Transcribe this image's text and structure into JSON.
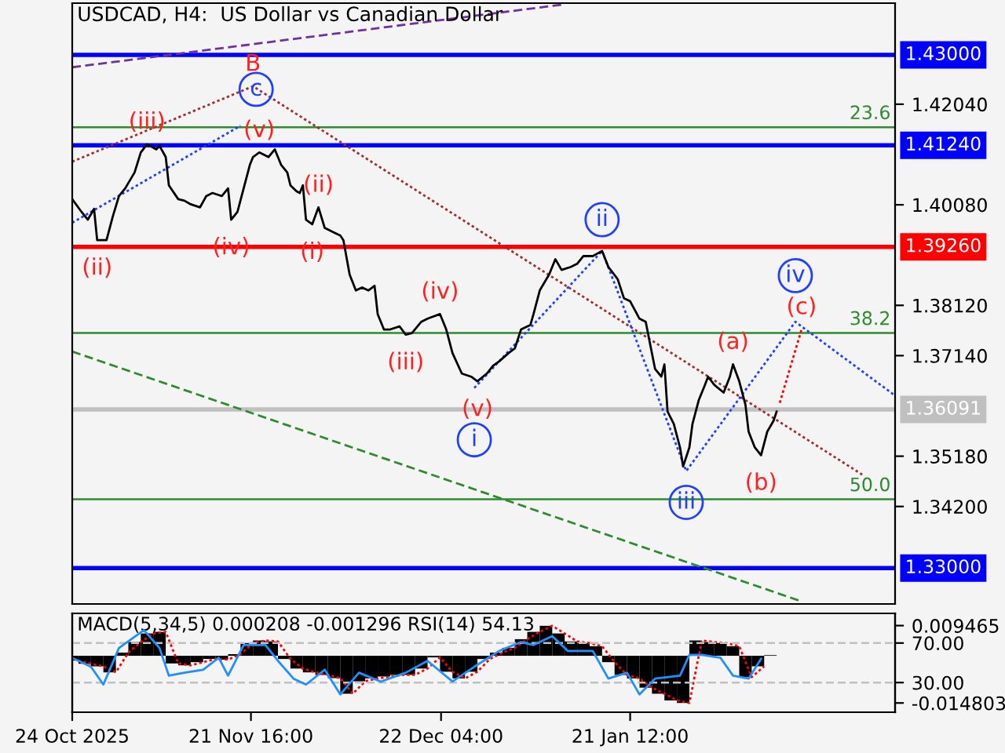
{
  "chart_data": [
    {
      "type": "line",
      "title": "USDCAD, H4:  US Dollar vs Canadian Dollar",
      "xlim": [
        "2025-10-24",
        "2026-03-05"
      ],
      "ylim": [
        1.323,
        1.4401
      ],
      "yticks": [
        {
          "value": 1.4204,
          "label": "1.42040"
        },
        {
          "value": 1.4008,
          "label": "1.40080"
        },
        {
          "value": 1.3812,
          "label": "1.38120"
        },
        {
          "value": 1.3714,
          "label": "1.37140"
        },
        {
          "value": 1.3518,
          "label": "1.35180"
        },
        {
          "value": 1.342,
          "label": "1.34200"
        }
      ],
      "tick_labels": "y",
      "ref_lines": [
        {
          "axis": "y",
          "value": 1.43,
          "label": "1.43000",
          "color": "#0000ff",
          "line_style": "solid"
        },
        {
          "axis": "y",
          "value": 1.4124,
          "label": "1.41240",
          "color": "#0000ff",
          "line_style": "solid"
        },
        {
          "axis": "y",
          "value": 1.3926,
          "label": "1.39260",
          "color": "#ff0000",
          "line_style": "solid"
        },
        {
          "axis": "y",
          "value": 1.36091,
          "label": "1.36091",
          "color": "#c0c0c0",
          "line_style": "solid"
        },
        {
          "axis": "y",
          "value": 1.33,
          "label": "1.33000",
          "color": "#0000ff",
          "line_style": "solid"
        },
        {
          "axis": "y",
          "value": 1.4159,
          "color": "#2e8b2e",
          "line_style": "solid"
        },
        {
          "axis": "y",
          "value": 1.3758,
          "color": "#2e8b2e",
          "line_style": "solid"
        },
        {
          "axis": "y",
          "value": 1.3434,
          "color": "#2e8b2e",
          "line_style": "solid"
        }
      ],
      "annotations": [
        {
          "text": "23.6",
          "x": "2026-03-05",
          "y": 1.4159
        },
        {
          "text": "38.2",
          "x": "2026-03-05",
          "y": 1.3758
        },
        {
          "text": "50.0",
          "x": "2026-03-05",
          "y": 1.3434
        },
        {
          "text": "(iii)",
          "x": "2025-11-05",
          "y": 1.4126
        },
        {
          "text": "(v)",
          "x": "2025-11-23",
          "y": 1.411
        },
        {
          "text": "(ii)",
          "x": "2025-10-28",
          "y": 1.3939
        },
        {
          "text": "(iv)",
          "x": "2025-11-18T12:00",
          "y": 1.3979
        },
        {
          "text": "(ii)",
          "x": "2025-12-02T12:00",
          "y": 1.4003
        },
        {
          "text": "(i)",
          "x": "2025-12-01T12:00",
          "y": 1.397
        },
        {
          "text": "(iv)",
          "x": "2025-12-22",
          "y": 1.3795
        },
        {
          "text": "(iii)",
          "x": "2025-12-16T12:00",
          "y": 1.3755
        },
        {
          "text": "(v)",
          "x": "2025-12-28",
          "y": 1.3664
        },
        {
          "text": "(a)",
          "x": "2026-02-07",
          "y": 1.3697
        },
        {
          "text": "(b)",
          "x": "2026-02-11T12:00",
          "y": 1.352
        },
        {
          "text": "(c)",
          "x": "2026-02-18",
          "y": 1.3765
        },
        {
          "text": "B",
          "x": "2025-11-22",
          "y": 1.4239
        }
      ],
      "series": [
        {
          "type": "line",
          "color": "#7030a0",
          "line_style": "dashed",
          "x": [
            "2025-10-24",
            "2026-01-10T12:00"
          ],
          "values": [
            1.4276,
            1.4398
          ]
        },
        {
          "type": "line",
          "color": "#2e8b2e",
          "line_style": "dashed",
          "x": [
            "2025-10-24",
            "2026-02-18"
          ],
          "values": [
            1.3722,
            1.3235
          ]
        },
        {
          "type": "line",
          "color": "#a03030",
          "line_style": "dotted",
          "x": [
            "2025-10-24",
            "2025-11-22",
            "2026-02-28"
          ],
          "values": [
            1.4092,
            1.4239,
            1.348
          ]
        },
        {
          "type": "line",
          "color": "#2040ff",
          "line_style": "dotted",
          "x": [
            "2025-10-24",
            "2025-11-20"
          ],
          "values": [
            1.3973,
            1.4162
          ]
        },
        {
          "type": "line",
          "color": "#2040ff",
          "line_style": "dotted",
          "x": [
            "2025-12-27T12:00",
            "2026-01-17",
            "2026-01-30T12:00",
            "2026-02-17",
            "2026-03-05"
          ],
          "values": [
            1.3651,
            1.3918,
            1.3489,
            1.378,
            1.3636
          ]
        },
        {
          "type": "line",
          "color": "#ff0000",
          "line_style": "dotted",
          "x": [
            "2026-02-14T12:00",
            "2026-02-18"
          ],
          "values": [
            1.3622,
            1.3765
          ]
        },
        {
          "color": "#000000",
          "x": [
            "2025-10-24",
            "2025-10-25T12:00",
            "2025-10-26T12:00",
            "2025-10-27T12:00",
            "2025-10-28",
            "2025-10-29T12:00",
            "2025-10-30T12:00",
            "2025-10-31T12:00",
            "2025-11-01T12:00",
            "2025-11-03",
            "2025-11-04",
            "2025-11-05",
            "2025-11-06T12:00",
            "2025-11-07",
            "2025-11-08",
            "2025-11-08T12:00",
            "2025-11-10",
            "2025-11-11",
            "2025-11-12",
            "2025-11-13T12:00",
            "2025-11-14T12:00",
            "2025-11-15T12:00",
            "2025-11-17",
            "2025-11-18",
            "2025-11-18T12:00",
            "2025-11-19T12:00",
            "2025-11-20T12:00",
            "2025-11-21T12:00",
            "2025-11-22",
            "2025-11-23",
            "2025-11-24T12:00",
            "2025-11-25T12:00",
            "2025-11-26T12:00",
            "2025-11-27T12:00",
            "2025-11-28",
            "2025-11-29",
            "2025-11-29T12:00",
            "2025-11-30",
            "2025-11-30T12:00",
            "2025-12-01T12:00",
            "2025-12-02T12:00",
            "2025-12-03T12:00",
            "2025-12-05",
            "2025-12-06",
            "2025-12-06T12:00",
            "2025-12-07T12:00",
            "2025-12-08T12:00",
            "2025-12-09T12:00",
            "2025-12-10T12:00",
            "2025-12-11T12:00",
            "2025-12-12",
            "2025-12-13",
            "2025-12-14",
            "2025-12-15T12:00",
            "2025-12-16T12:00",
            "2025-12-17T12:00",
            "2025-12-19",
            "2025-12-20",
            "2025-12-22",
            "2025-12-23",
            "2025-12-24",
            "2025-12-25T12:00",
            "2025-12-27",
            "2025-12-28",
            "2025-12-29T12:00",
            "2025-12-30T12:00",
            "2025-12-31T12:00",
            "2026-01-02",
            "2026-01-03",
            "2026-01-04",
            "2026-01-05T12:00",
            "2026-01-06",
            "2026-01-07",
            "2026-01-08T12:00",
            "2026-01-09T12:00",
            "2026-01-10T12:00",
            "2026-01-12",
            "2026-01-13",
            "2026-01-14",
            "2026-01-15T12:00",
            "2026-01-17",
            "2026-01-18",
            "2026-01-19T12:00",
            "2026-01-20T12:00",
            "2026-01-21T12:00",
            "2026-01-23",
            "2026-01-24",
            "2026-01-24T12:00",
            "2026-01-25T12:00",
            "2026-01-26T12:00",
            "2026-01-27",
            "2026-01-27T12:00",
            "2026-01-28T12:00",
            "2026-01-29T12:00",
            "2026-01-30",
            "2026-01-31",
            "2026-01-31T12:00",
            "2026-02-01T12:00",
            "2026-02-02T12:00",
            "2026-02-03",
            "2026-02-04",
            "2026-02-05T12:00",
            "2026-02-06T12:00",
            "2026-02-07",
            "2026-02-08",
            "2026-02-09",
            "2026-02-09T12:00",
            "2026-02-10T12:00",
            "2026-02-11T12:00",
            "2026-02-12T12:00",
            "2026-02-13T12:00",
            "2026-02-14"
          ],
          "values": [
            1.4019,
            1.3994,
            1.3979,
            1.4,
            1.3939,
            1.3939,
            1.3985,
            1.4025,
            1.404,
            1.4071,
            1.411,
            1.4126,
            1.4116,
            1.4123,
            1.4101,
            1.4046,
            1.4019,
            1.4016,
            1.4009,
            1.4003,
            1.4025,
            1.4031,
            1.4025,
            1.404,
            1.3979,
            1.3994,
            1.404,
            1.4086,
            1.4101,
            1.411,
            1.4101,
            1.4116,
            1.4086,
            1.4071,
            1.4046,
            1.4034,
            1.4031,
            1.4046,
            1.3979,
            1.397,
            1.4003,
            1.3963,
            1.3954,
            1.3948,
            1.3939,
            1.3872,
            1.3841,
            1.3847,
            1.3841,
            1.385,
            1.3795,
            1.3765,
            1.3765,
            1.3771,
            1.3755,
            1.3758,
            1.378,
            1.3786,
            1.3795,
            1.3765,
            1.3719,
            1.3679,
            1.3673,
            1.3664,
            1.3679,
            1.3694,
            1.3703,
            1.3719,
            1.3728,
            1.3765,
            1.3774,
            1.3795,
            1.3841,
            1.3872,
            1.3902,
            1.3881,
            1.3887,
            1.3893,
            1.3908,
            1.3908,
            1.3918,
            1.3887,
            1.3863,
            1.3826,
            1.382,
            1.3786,
            1.378,
            1.3749,
            1.3688,
            1.3673,
            1.3697,
            1.3605,
            1.3581,
            1.3535,
            1.3498,
            1.3535,
            1.3581,
            1.3627,
            1.3657,
            1.3673,
            1.3657,
            1.3642,
            1.3673,
            1.3697,
            1.3664,
            1.3618,
            1.3566,
            1.3535,
            1.352,
            1.3566,
            1.3587,
            1.3605
          ]
        },
        {
          "type": "scatter",
          "marker": "circle",
          "color": "#2040ff",
          "x": [
            "2025-11-22T12:00",
            "2026-01-17",
            "2025-12-27T12:00",
            "2026-01-30T12:00",
            "2026-02-17"
          ],
          "values": [
            1.4233,
            1.3979,
            1.355,
            1.3428,
            1.387
          ],
          "value_labels": [
            "c",
            "ii",
            "i",
            "iii",
            "iv"
          ]
        }
      ]
    },
    {
      "type": "bar",
      "title": "MACD(5,34,5) 0.000208 -0.001296 RSI(14) 54.13",
      "xlim": [
        "2025-10-24",
        "2026-03-05"
      ],
      "xticks": [
        {
          "value": "2025-10-24",
          "label": "24 Oct 2025"
        },
        {
          "value": "2025-11-21T16:00",
          "label": "21 Nov 16:00"
        },
        {
          "value": "2025-12-22T04:00",
          "label": "22 Dec 04:00"
        },
        {
          "value": "2026-01-21T12:00",
          "label": "21 Jan 12:00"
        }
      ],
      "ylim": [
        -0.0177,
        0.0133
      ],
      "yticks": [
        0.009465,
        {
          "value": -0.014803,
          "label": "-0.014803"
        }
      ],
      "y2lim": [
        0,
        100
      ],
      "y2ticks": [
        {
          "value": 70,
          "label": "70.00"
        },
        {
          "value": 30,
          "label": "30.00"
        }
      ],
      "ref_lines": [
        {
          "axis": "y2",
          "value": 70,
          "color": "#c0c0c0",
          "line_style": "dashed"
        },
        {
          "axis": "y2",
          "value": 30,
          "color": "#c0c0c0",
          "line_style": "dashed"
        }
      ],
      "series": [
        {
          "color": "#000000",
          "x": [
            "2025-10-24",
            "2025-10-26",
            "2025-10-28",
            "2025-10-30",
            "2025-11-01",
            "2025-11-03",
            "2025-11-05",
            "2025-11-07",
            "2025-11-09",
            "2025-11-11",
            "2025-11-13",
            "2025-11-15",
            "2025-11-17",
            "2025-11-19",
            "2025-11-21",
            "2025-11-23",
            "2025-11-25",
            "2025-11-27",
            "2025-11-29",
            "2025-12-01",
            "2025-12-03",
            "2025-12-05",
            "2025-12-07",
            "2025-12-09",
            "2025-12-11",
            "2025-12-13",
            "2025-12-15",
            "2025-12-17",
            "2025-12-19",
            "2025-12-21",
            "2025-12-23",
            "2025-12-25",
            "2025-12-27",
            "2025-12-29",
            "2025-12-31",
            "2026-01-02",
            "2026-01-04",
            "2026-01-06",
            "2026-01-08",
            "2026-01-10",
            "2026-01-12",
            "2026-01-14",
            "2026-01-16",
            "2026-01-18",
            "2026-01-20",
            "2026-01-22",
            "2026-01-24",
            "2026-01-26",
            "2026-01-28",
            "2026-01-30",
            "2026-02-01",
            "2026-02-03",
            "2026-02-05",
            "2026-02-07",
            "2026-02-09",
            "2026-02-11",
            "2026-02-13"
          ],
          "values": [
            -0.0015,
            -0.0025,
            -0.0033,
            -0.0052,
            0.001,
            0.0043,
            0.007,
            0.0075,
            -0.0024,
            -0.003,
            -0.002,
            -0.001,
            -0.0012,
            0.0005,
            0.004,
            0.0048,
            0.0045,
            -0.001,
            -0.004,
            -0.0052,
            -0.006,
            -0.007,
            -0.0119,
            -0.008,
            -0.0071,
            -0.0065,
            -0.006,
            -0.006,
            -0.004,
            -0.0005,
            -0.005,
            -0.0071,
            -0.005,
            -0.001,
            0.001,
            0.0025,
            0.0052,
            0.0075,
            0.0094,
            0.007,
            0.0045,
            0.004,
            0.003,
            -0.002,
            -0.006,
            -0.0071,
            -0.01,
            -0.0119,
            -0.014,
            -0.0148,
            0.0048,
            0.0043,
            0.004,
            0.003,
            -0.0067,
            -0.0033,
            0.0002
          ]
        },
        {
          "type": "line",
          "color": "#ff0000",
          "line_style": "dotted",
          "x": [
            "2025-10-25",
            "2025-10-27",
            "2025-10-29",
            "2025-10-31",
            "2025-11-02",
            "2025-11-04",
            "2025-11-06",
            "2025-11-08",
            "2025-11-10",
            "2025-11-12",
            "2025-11-14",
            "2025-11-16",
            "2025-11-18",
            "2025-11-20",
            "2025-11-22",
            "2025-11-24",
            "2025-11-26",
            "2025-11-28",
            "2025-11-30",
            "2025-12-02",
            "2025-12-04",
            "2025-12-06",
            "2025-12-08",
            "2025-12-10",
            "2025-12-12",
            "2025-12-14",
            "2025-12-16",
            "2025-12-18",
            "2025-12-20",
            "2025-12-22",
            "2025-12-24",
            "2025-12-26",
            "2025-12-28",
            "2025-12-30",
            "2026-01-01",
            "2026-01-03",
            "2026-01-05",
            "2026-01-07",
            "2026-01-09",
            "2026-01-11",
            "2026-01-13",
            "2026-01-15",
            "2026-01-17",
            "2026-01-19",
            "2026-01-21",
            "2026-01-23",
            "2026-01-25",
            "2026-01-27",
            "2026-01-29",
            "2026-01-31",
            "2026-02-02",
            "2026-02-04",
            "2026-02-06",
            "2026-02-08",
            "2026-02-10",
            "2026-02-12"
          ],
          "values": [
            -0.0015,
            -0.0025,
            -0.0033,
            -0.0052,
            0.001,
            0.0043,
            0.007,
            0.0075,
            -0.0024,
            -0.003,
            -0.002,
            -0.001,
            -0.0012,
            0.0005,
            0.004,
            0.0048,
            0.0045,
            -0.001,
            -0.004,
            -0.0052,
            -0.006,
            -0.007,
            -0.0119,
            -0.008,
            -0.0071,
            -0.0065,
            -0.006,
            -0.006,
            -0.004,
            -0.0005,
            -0.005,
            -0.0071,
            -0.005,
            -0.001,
            0.001,
            0.0025,
            0.0052,
            0.0075,
            0.0094,
            0.007,
            0.0045,
            0.004,
            0.003,
            -0.002,
            -0.006,
            -0.0071,
            -0.01,
            -0.0119,
            -0.014,
            -0.0148,
            0.0048,
            0.0043,
            0.004,
            0.003,
            -0.0067,
            -0.0033
          ]
        },
        {
          "type": "line",
          "color": "#1e90ff",
          "axis": "y2",
          "x": [
            "2025-10-24",
            "2025-10-27",
            "2025-10-29",
            "2025-10-31T12:00",
            "2025-11-04T12:00",
            "2025-11-07",
            "2025-11-08T12:00",
            "2025-11-11",
            "2025-11-14",
            "2025-11-16T12:00",
            "2025-11-18",
            "2025-11-20T12:00",
            "2025-11-24",
            "2025-11-26",
            "2025-11-28T12:00",
            "2025-11-30T12:00",
            "2025-12-03T12:00",
            "2025-12-06",
            "2025-12-09",
            "2025-12-12T12:00",
            "2025-12-16T12:00",
            "2025-12-20",
            "2025-12-24",
            "2025-12-27T12:00",
            "2025-12-31T12:00",
            "2026-01-04",
            "2026-01-06",
            "2026-01-09",
            "2026-01-11T12:00",
            "2026-01-15T12:00",
            "2026-01-18",
            "2026-01-21",
            "2026-01-23",
            "2026-01-25T12:00",
            "2026-01-29T12:00",
            "2026-01-31",
            "2026-02-02",
            "2026-02-05",
            "2026-02-07",
            "2026-02-09T12:00",
            "2026-02-11T12:00"
          ],
          "values": [
            55,
            46,
            28,
            65,
            83,
            65,
            37,
            40,
            43,
            55,
            37,
            68,
            68,
            52,
            34,
            28,
            43,
            18,
            40,
            31,
            40,
            52,
            31,
            46,
            62,
            71,
            68,
            77,
            62,
            62,
            34,
            40,
            18,
            34,
            37,
            58,
            58,
            55,
            37,
            34,
            54
          ]
        }
      ]
    }
  ]
}
